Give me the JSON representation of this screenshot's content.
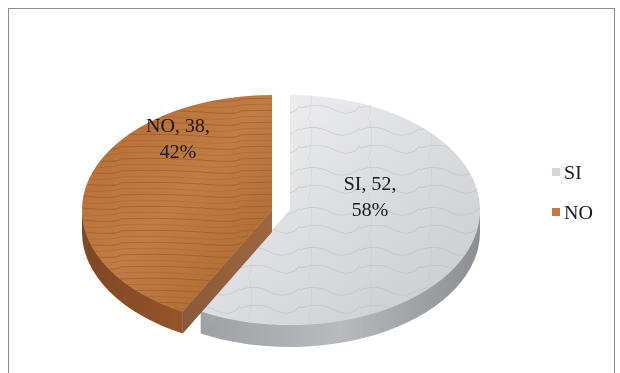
{
  "chart_data": {
    "type": "pie",
    "title": "",
    "categories": [
      "SI",
      "NO"
    ],
    "values": [
      52,
      38
    ],
    "percentages": [
      "58%",
      "42%"
    ],
    "data_labels": [
      {
        "line1": "SI, 52,",
        "line2": "58%"
      },
      {
        "line1": "NO, 38,",
        "line2": "42%"
      }
    ],
    "colors": {
      "SI": "#d9dadc",
      "NO": "#b8733a"
    },
    "style": "3d-exploded",
    "legend": {
      "position": "right",
      "entries": [
        {
          "label": "SI",
          "color": "#d4d5d8"
        },
        {
          "label": "NO",
          "color": "#c47a3c"
        }
      ]
    }
  }
}
